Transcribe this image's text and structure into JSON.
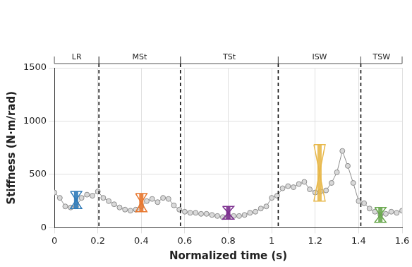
{
  "chart_data": {
    "type": "line",
    "x_label": "Normalized time (s)",
    "y_label": "Stiffness (N·m/rad)",
    "x": [
      0,
      0.025,
      0.05,
      0.075,
      0.1,
      0.125,
      0.15,
      0.175,
      0.2,
      0.225,
      0.25,
      0.275,
      0.3,
      0.325,
      0.35,
      0.375,
      0.4,
      0.425,
      0.45,
      0.475,
      0.5,
      0.525,
      0.55,
      0.575,
      0.6,
      0.625,
      0.65,
      0.675,
      0.7,
      0.725,
      0.75,
      0.775,
      0.8,
      0.825,
      0.85,
      0.875,
      0.9,
      0.925,
      0.95,
      0.975,
      1.0,
      1.025,
      1.05,
      1.075,
      1.1,
      1.125,
      1.15,
      1.175,
      1.2,
      1.225,
      1.25,
      1.275,
      1.3,
      1.325,
      1.35,
      1.375,
      1.4,
      1.425,
      1.45,
      1.475,
      1.5,
      1.525,
      1.55,
      1.575,
      1.6
    ],
    "values": [
      330,
      280,
      200,
      190,
      200,
      280,
      310,
      300,
      340,
      280,
      250,
      220,
      190,
      170,
      160,
      170,
      200,
      250,
      270,
      240,
      280,
      270,
      210,
      170,
      150,
      140,
      140,
      130,
      130,
      120,
      110,
      100,
      100,
      110,
      110,
      120,
      140,
      150,
      180,
      200,
      280,
      300,
      370,
      390,
      380,
      410,
      430,
      360,
      330,
      340,
      350,
      420,
      520,
      720,
      580,
      420,
      250,
      230,
      180,
      150,
      120,
      130,
      150,
      140,
      160
    ],
    "color": "#8c8c8c",
    "marker": "circle",
    "xlim": [
      0,
      1.6
    ],
    "xticks": [
      0,
      0.2,
      0.4,
      0.6,
      0.8,
      1,
      1.2,
      1.4,
      1.6
    ],
    "ylim": [
      0,
      1500
    ],
    "yticks": [
      0,
      500,
      1000,
      1500
    ],
    "grid": true,
    "phases": [
      {
        "label": "LR",
        "start": 0,
        "end": 0.205
      },
      {
        "label": "MSt",
        "start": 0.205,
        "end": 0.58
      },
      {
        "label": "TSt",
        "start": 0.58,
        "end": 1.03
      },
      {
        "label": "ISW",
        "start": 1.03,
        "end": 1.41
      },
      {
        "label": "TSW",
        "start": 1.41,
        "end": 1.6
      }
    ],
    "error_bars": [
      {
        "x": 0.1,
        "low": 180,
        "high": 340,
        "color": "#2e7ab8"
      },
      {
        "x": 0.4,
        "low": 150,
        "high": 320,
        "color": "#e8772e"
      },
      {
        "x": 0.8,
        "low": 80,
        "high": 200,
        "color": "#7b2d8e"
      },
      {
        "x": 1.22,
        "low": 250,
        "high": 780,
        "color": "#e8b84a"
      },
      {
        "x": 1.5,
        "low": 50,
        "high": 190,
        "color": "#6aa84f"
      }
    ]
  }
}
